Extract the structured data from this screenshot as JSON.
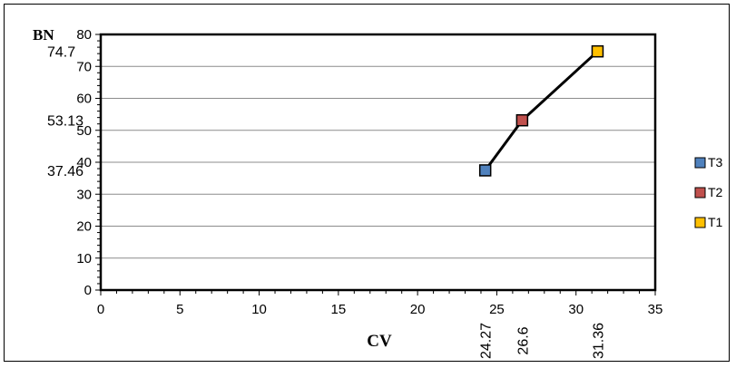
{
  "chart_data": {
    "type": "line",
    "xlabel": "CV",
    "ylabel": "BN",
    "xlim": [
      0,
      35
    ],
    "ylim": [
      0,
      80
    ],
    "x_ticks": [
      0,
      5,
      10,
      15,
      20,
      25,
      30,
      35
    ],
    "y_ticks": [
      0,
      10,
      20,
      30,
      40,
      50,
      60,
      70,
      80
    ],
    "grid": "horizontal",
    "legend_position": "right",
    "points": [
      {
        "name": "T3",
        "x": 24.27,
        "y": 37.46,
        "color": "#4F81BD"
      },
      {
        "name": "T2",
        "x": 26.6,
        "y": 53.13,
        "color": "#C0504D"
      },
      {
        "name": "T1",
        "x": 31.36,
        "y": 74.7,
        "color": "#FFC000"
      }
    ],
    "x_annotations": [
      "24.27",
      "26.6",
      "31.36"
    ],
    "y_annotations": [
      "37.46",
      "53.13",
      "74.7"
    ],
    "line_color": "#000000"
  }
}
